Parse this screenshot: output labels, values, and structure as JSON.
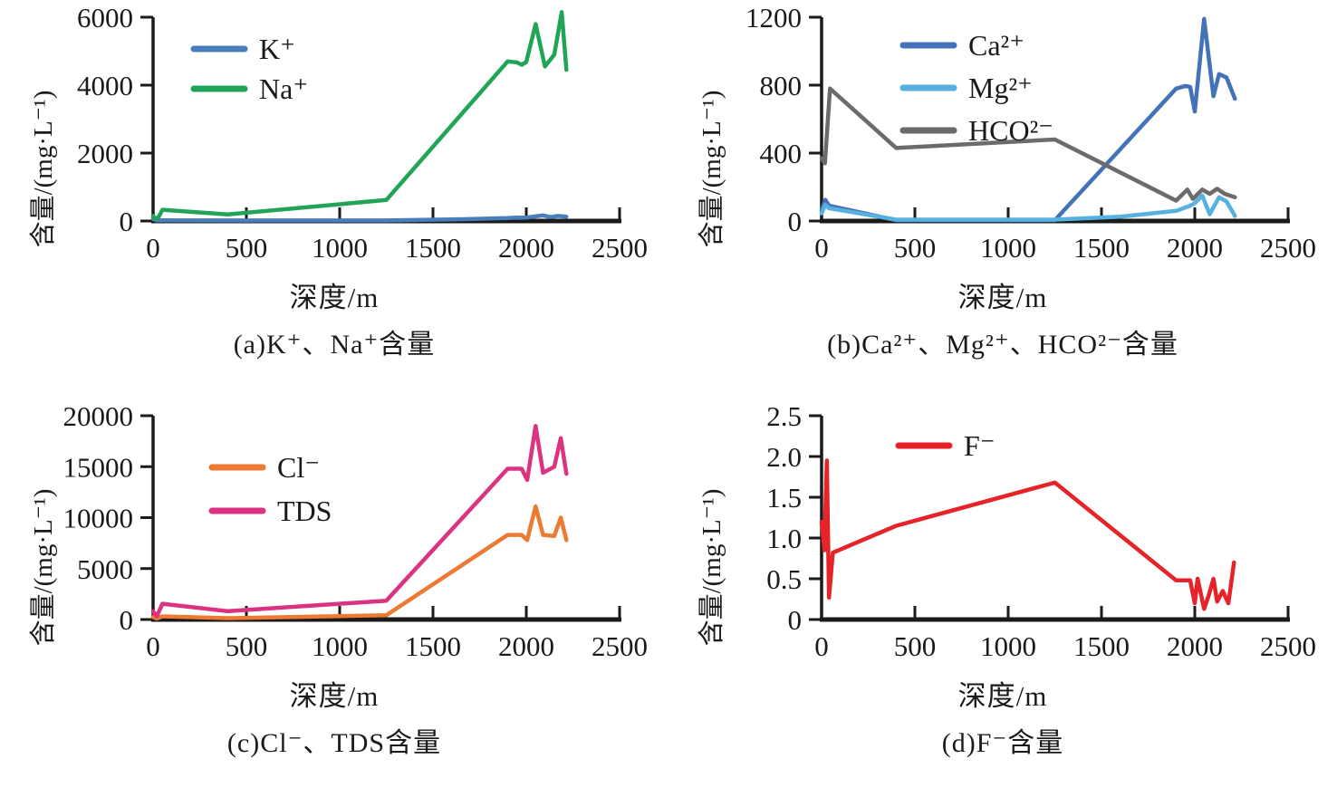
{
  "figure": {
    "x_axis_label": "深度/m",
    "y_axis_label": "含量/(mg·L⁻¹)",
    "axis_color": "#1a1a1a",
    "background_color": "#ffffff"
  },
  "chart_data": [
    {
      "id": "a",
      "type": "line",
      "caption": "(a)K⁺、Na⁺含量",
      "xlabel": "深度/m",
      "ylabel": "含量/(mg·L⁻¹)",
      "xlim": [
        0,
        2500
      ],
      "ylim": [
        0,
        6000
      ],
      "xticks": [
        0,
        500,
        1000,
        1500,
        2000,
        2500
      ],
      "xtick_labels": [
        "0",
        "500",
        "1000",
        "1500",
        "2000",
        "2500"
      ],
      "yticks": [
        0,
        2000,
        4000,
        6000
      ],
      "ytick_labels": [
        "0",
        "2000",
        "4000",
        "6000"
      ],
      "grid": false,
      "legend_position": "upper-left-inside",
      "series": [
        {
          "name": "K⁺",
          "color": "#4a7ebb",
          "points": [
            [
              0,
              60
            ],
            [
              15,
              25
            ],
            [
              30,
              20
            ],
            [
              50,
              20
            ],
            [
              400,
              15
            ],
            [
              1250,
              15
            ],
            [
              1600,
              45
            ],
            [
              1900,
              85
            ],
            [
              1950,
              100
            ],
            [
              1975,
              95
            ],
            [
              2000,
              100
            ],
            [
              2050,
              135
            ],
            [
              2090,
              165
            ],
            [
              2130,
              115
            ],
            [
              2170,
              150
            ],
            [
              2215,
              125
            ]
          ]
        },
        {
          "name": "Na⁺",
          "color": "#22a457",
          "points": [
            [
              0,
              150
            ],
            [
              15,
              60
            ],
            [
              30,
              120
            ],
            [
              50,
              330
            ],
            [
              400,
              195
            ],
            [
              1250,
              620
            ],
            [
              1900,
              4700
            ],
            [
              1950,
              4670
            ],
            [
              1975,
              4600
            ],
            [
              2000,
              4680
            ],
            [
              2050,
              5800
            ],
            [
              2100,
              4550
            ],
            [
              2150,
              4900
            ],
            [
              2190,
              6150
            ],
            [
              2215,
              4450
            ]
          ]
        }
      ]
    },
    {
      "id": "b",
      "type": "line",
      "caption": "(b)Ca²⁺、Mg²⁺、HCO²⁻含量",
      "xlabel": "深度/m",
      "ylabel": "含量/(mg·L⁻¹)",
      "xlim": [
        0,
        2500
      ],
      "ylim": [
        0,
        1200
      ],
      "xticks": [
        0,
        500,
        1000,
        1500,
        2000,
        2500
      ],
      "xtick_labels": [
        "0",
        "500",
        "1000",
        "1500",
        "2000",
        "2500"
      ],
      "yticks": [
        0,
        400,
        800,
        1200
      ],
      "ytick_labels": [
        "0",
        "400",
        "800",
        "1200"
      ],
      "grid": false,
      "legend_position": "upper-left-inside",
      "series": [
        {
          "name": "Ca²⁺",
          "color": "#4472b8",
          "points": [
            [
              0,
              60
            ],
            [
              20,
              125
            ],
            [
              40,
              90
            ],
            [
              400,
              5
            ],
            [
              1250,
              5
            ],
            [
              1900,
              780
            ],
            [
              1950,
              795
            ],
            [
              1975,
              790
            ],
            [
              2000,
              645
            ],
            [
              2050,
              1190
            ],
            [
              2100,
              735
            ],
            [
              2130,
              865
            ],
            [
              2170,
              845
            ],
            [
              2215,
              720
            ]
          ]
        },
        {
          "name": "Mg²⁺",
          "color": "#56b1e1",
          "points": [
            [
              0,
              45
            ],
            [
              20,
              95
            ],
            [
              40,
              75
            ],
            [
              400,
              8
            ],
            [
              1250,
              8
            ],
            [
              1600,
              25
            ],
            [
              1900,
              60
            ],
            [
              1975,
              90
            ],
            [
              2000,
              105
            ],
            [
              2040,
              150
            ],
            [
              2080,
              40
            ],
            [
              2130,
              140
            ],
            [
              2170,
              115
            ],
            [
              2215,
              30
            ]
          ]
        },
        {
          "name": "HCO²⁻",
          "color": "#6b6b6b",
          "points": [
            [
              0,
              370
            ],
            [
              18,
              340
            ],
            [
              45,
              780
            ],
            [
              400,
              430
            ],
            [
              1250,
              480
            ],
            [
              1900,
              120
            ],
            [
              1960,
              185
            ],
            [
              1990,
              130
            ],
            [
              2040,
              185
            ],
            [
              2080,
              160
            ],
            [
              2120,
              190
            ],
            [
              2160,
              160
            ],
            [
              2215,
              140
            ]
          ]
        }
      ]
    },
    {
      "id": "c",
      "type": "line",
      "caption": "(c)Cl⁻、TDS含量",
      "xlabel": "深度/m",
      "ylabel": "含量/(mg·L⁻¹)",
      "xlim": [
        0,
        2500
      ],
      "ylim": [
        0,
        20000
      ],
      "xticks": [
        0,
        500,
        1000,
        1500,
        2000,
        2500
      ],
      "xtick_labels": [
        "0",
        "500",
        "1000",
        "1500",
        "2000",
        "2500"
      ],
      "yticks": [
        0,
        5000,
        10000,
        15000,
        20000
      ],
      "ytick_labels": [
        "0",
        "5000",
        "10000",
        "15000",
        "20000"
      ],
      "grid": false,
      "legend_position": "upper-left-inside",
      "series": [
        {
          "name": "Cl⁻",
          "color": "#ed7a33",
          "points": [
            [
              0,
              250
            ],
            [
              20,
              100
            ],
            [
              50,
              310
            ],
            [
              400,
              130
            ],
            [
              1250,
              420
            ],
            [
              1900,
              8300
            ],
            [
              1975,
              8300
            ],
            [
              2005,
              7800
            ],
            [
              2050,
              11100
            ],
            [
              2090,
              8300
            ],
            [
              2150,
              8200
            ],
            [
              2185,
              10000
            ],
            [
              2215,
              7800
            ]
          ]
        },
        {
          "name": "TDS",
          "color": "#dc3380",
          "points": [
            [
              0,
              800
            ],
            [
              20,
              300
            ],
            [
              50,
              1550
            ],
            [
              400,
              820
            ],
            [
              1250,
              1850
            ],
            [
              1900,
              14800
            ],
            [
              1975,
              14800
            ],
            [
              2005,
              13700
            ],
            [
              2050,
              19000
            ],
            [
              2090,
              14400
            ],
            [
              2150,
              15000
            ],
            [
              2185,
              17800
            ],
            [
              2215,
              14300
            ]
          ]
        }
      ]
    },
    {
      "id": "d",
      "type": "line",
      "caption": "(d)F⁻含量",
      "xlabel": "深度/m",
      "ylabel": "含量/(mg·L⁻¹)",
      "xlim": [
        0,
        2500
      ],
      "ylim": [
        0,
        2.5
      ],
      "xticks": [
        0,
        500,
        1000,
        1500,
        2000,
        2500
      ],
      "xtick_labels": [
        "0",
        "500",
        "1000",
        "1500",
        "2000",
        "2500"
      ],
      "yticks": [
        0,
        0.5,
        1.0,
        1.5,
        2.0,
        2.5
      ],
      "ytick_labels": [
        "0",
        "0.5",
        "1.0",
        "1.5",
        "2.0",
        "2.5"
      ],
      "grid": false,
      "legend_position": "upper-left-inside",
      "series": [
        {
          "name": "F⁻",
          "color": "#e62328",
          "points": [
            [
              0,
              1.2
            ],
            [
              15,
              0.85
            ],
            [
              28,
              1.95
            ],
            [
              40,
              0.27
            ],
            [
              60,
              0.82
            ],
            [
              400,
              1.15
            ],
            [
              1250,
              1.68
            ],
            [
              1900,
              0.48
            ],
            [
              1975,
              0.48
            ],
            [
              2000,
              0.2
            ],
            [
              2015,
              0.5
            ],
            [
              2050,
              0.13
            ],
            [
              2075,
              0.3
            ],
            [
              2100,
              0.5
            ],
            [
              2120,
              0.22
            ],
            [
              2150,
              0.35
            ],
            [
              2180,
              0.2
            ],
            [
              2210,
              0.7
            ]
          ]
        }
      ]
    }
  ]
}
